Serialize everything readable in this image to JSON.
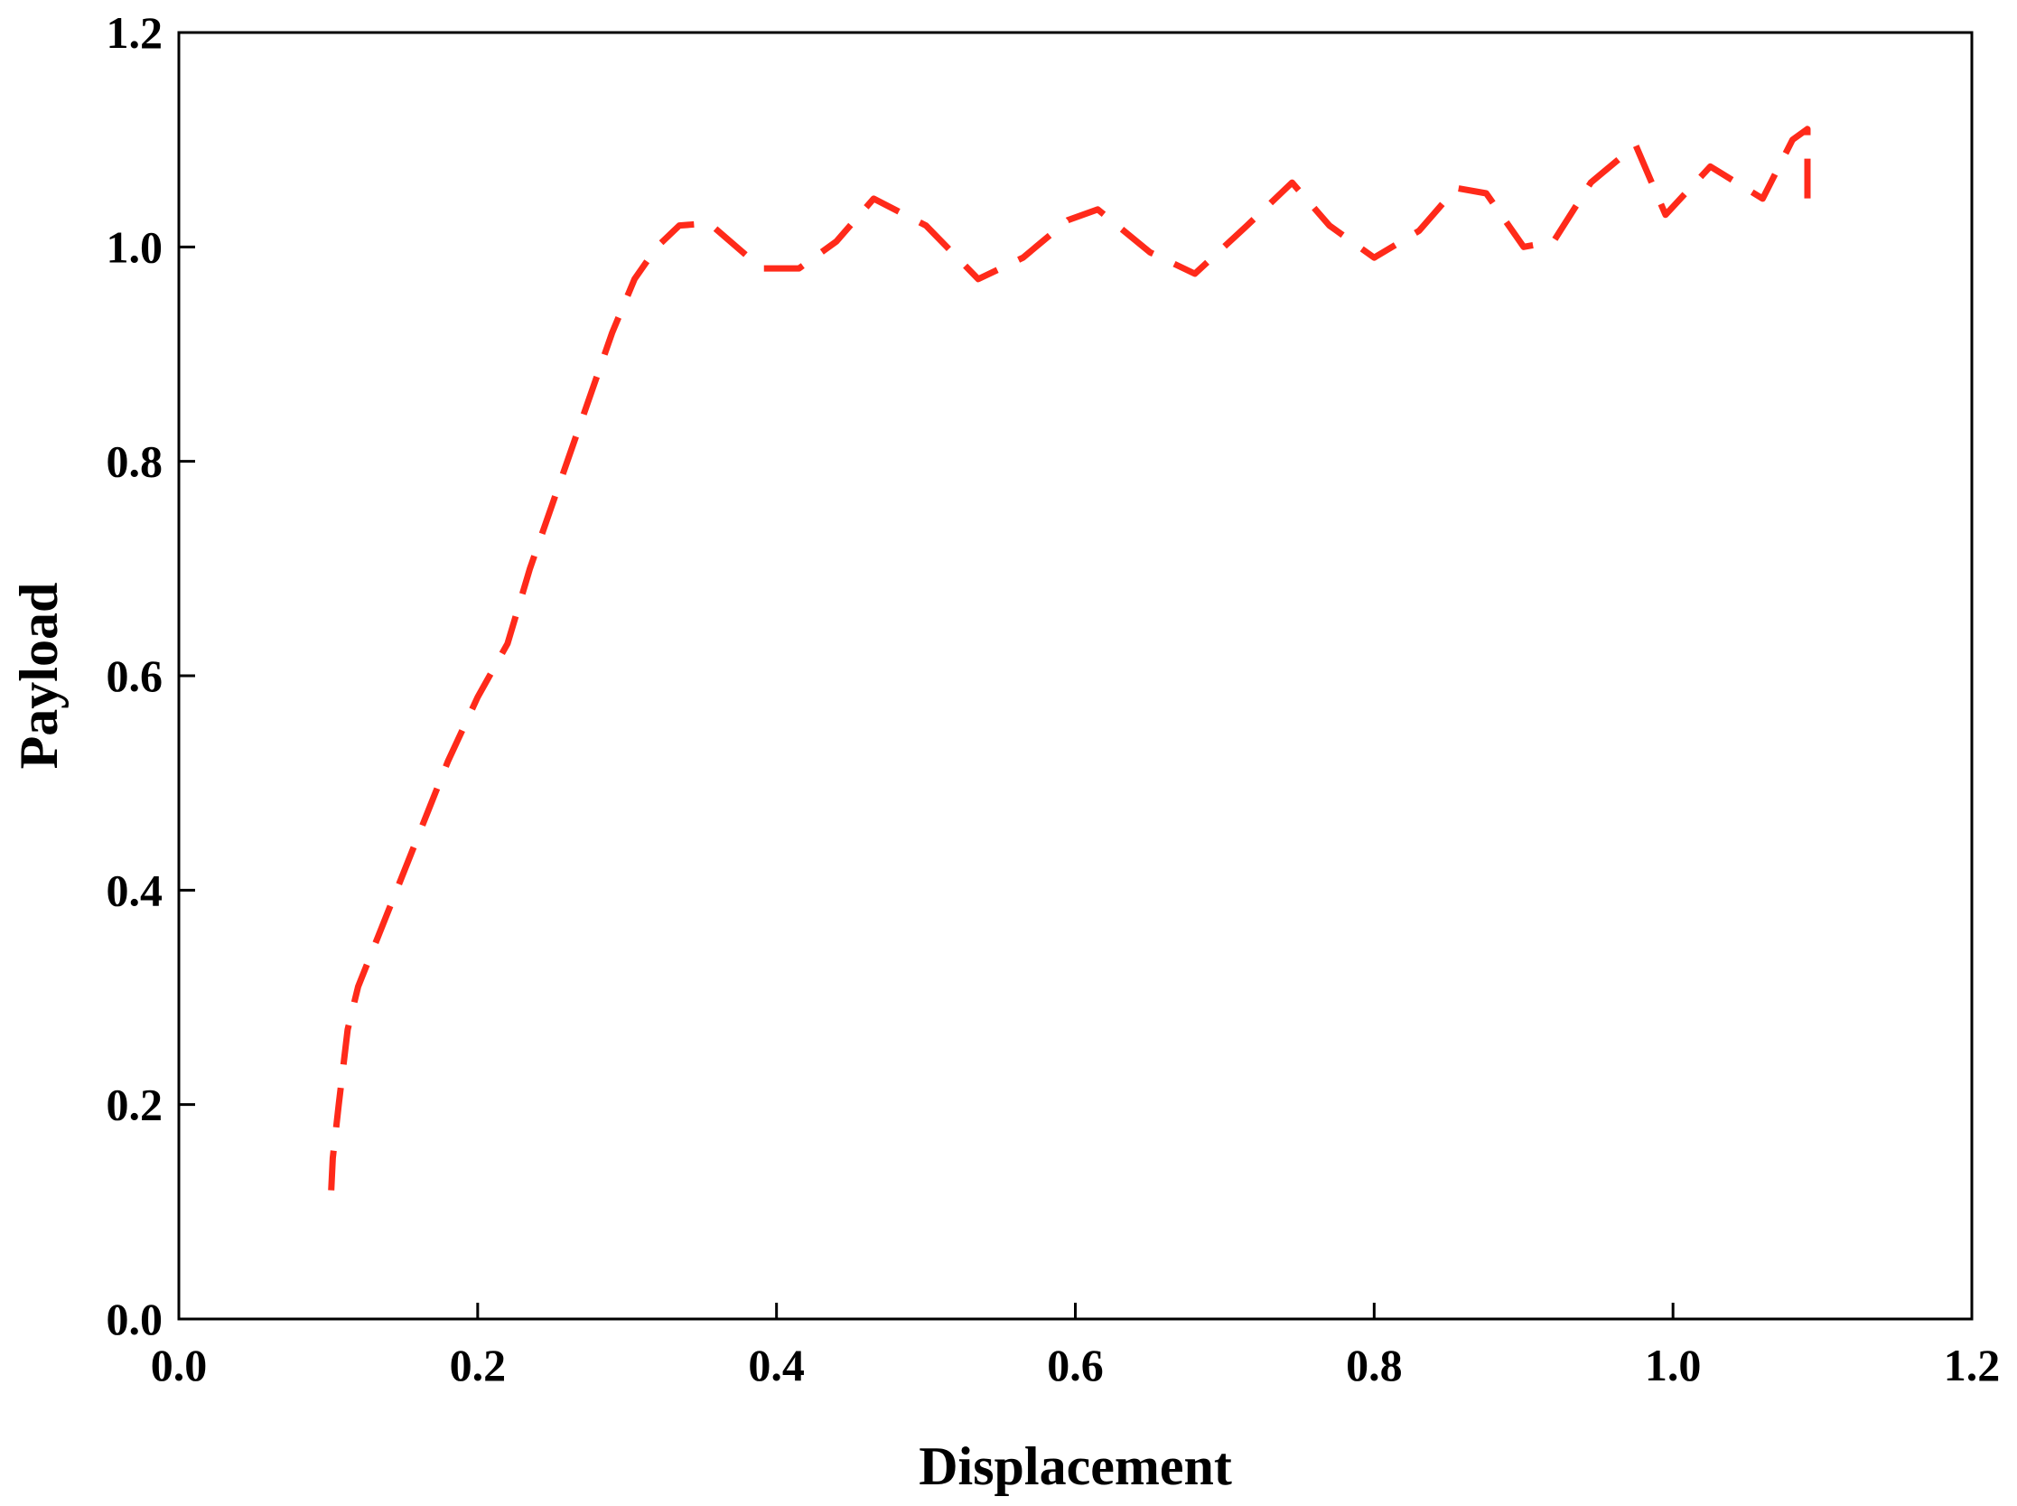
{
  "colors": {
    "series": "#ff2a1a",
    "axis": "#000000",
    "background": "#ffffff"
  },
  "chart_data": {
    "type": "line",
    "title": "",
    "xlabel": "Displacement",
    "ylabel": "Payload",
    "xlim": [
      0.0,
      1.2
    ],
    "ylim": [
      0.0,
      1.2
    ],
    "xticks": [
      "0.0",
      "0.2",
      "0.4",
      "0.6",
      "0.8",
      "1.0",
      "1.2"
    ],
    "yticks": [
      "0.0",
      "0.2",
      "0.4",
      "0.6",
      "0.8",
      "1.0",
      "1.2"
    ],
    "grid": false,
    "legend": "none",
    "line_style": "dashed",
    "series": [
      {
        "x": [
          0.102,
          0.103,
          0.107,
          0.113,
          0.12,
          0.14,
          0.16,
          0.18,
          0.2,
          0.22,
          0.235,
          0.25,
          0.27,
          0.29,
          0.305,
          0.32,
          0.335,
          0.355,
          0.39,
          0.415,
          0.44,
          0.465,
          0.5,
          0.535,
          0.565,
          0.595,
          0.615,
          0.65,
          0.68,
          0.715,
          0.745,
          0.77,
          0.8,
          0.83,
          0.855,
          0.875,
          0.9,
          0.92,
          0.945,
          0.975,
          0.995,
          1.025,
          1.06,
          1.08,
          1.09,
          1.09
        ],
        "y": [
          0.12,
          0.15,
          0.2,
          0.27,
          0.31,
          0.38,
          0.45,
          0.52,
          0.58,
          0.63,
          0.7,
          0.76,
          0.84,
          0.92,
          0.97,
          1.0,
          1.02,
          1.022,
          0.98,
          0.98,
          1.005,
          1.045,
          1.02,
          0.97,
          0.99,
          1.025,
          1.035,
          0.995,
          0.975,
          1.02,
          1.06,
          1.02,
          0.99,
          1.015,
          1.055,
          1.05,
          1.0,
          1.005,
          1.06,
          1.095,
          1.03,
          1.075,
          1.045,
          1.1,
          1.11,
          1.04
        ]
      }
    ]
  }
}
